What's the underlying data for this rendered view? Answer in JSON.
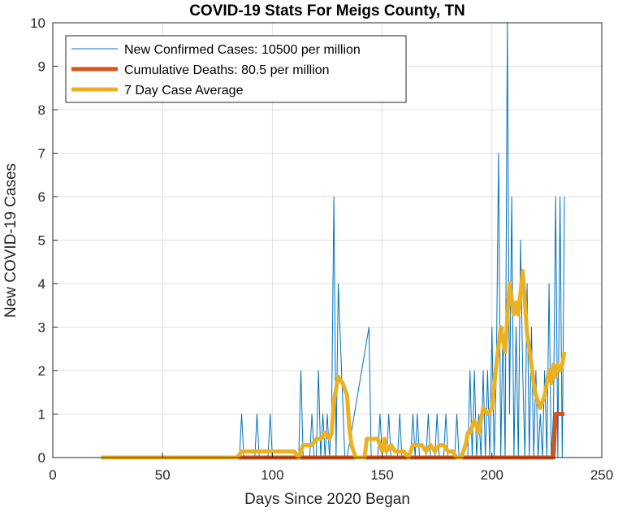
{
  "chart_data": {
    "type": "line",
    "title": "COVID-19 Stats For Meigs County, TN",
    "xlabel": "Days Since 2020 Began",
    "ylabel": "New COVID-19 Cases",
    "xlim": [
      0,
      250
    ],
    "ylim": [
      0,
      10
    ],
    "xticks": [
      0,
      50,
      100,
      150,
      200,
      250
    ],
    "yticks": [
      0,
      1,
      2,
      3,
      4,
      5,
      6,
      7,
      8,
      9,
      10
    ],
    "grid": true,
    "legend_position": "top-left",
    "series": [
      {
        "name": "New Confirmed Cases: 10500 per million",
        "color": "#0072BD",
        "line_width": 1,
        "x": [
          22,
          85,
          86,
          87,
          92,
          93,
          94,
          98,
          99,
          100,
          112,
          113,
          114,
          117,
          118,
          119,
          120,
          121,
          122,
          123,
          124,
          125,
          126,
          127,
          128,
          129,
          130,
          133,
          134,
          144,
          145,
          148,
          149,
          150,
          152,
          153,
          154,
          157,
          158,
          159,
          163,
          164,
          165,
          166,
          167,
          170,
          171,
          172,
          174,
          175,
          176,
          178,
          179,
          180,
          183,
          184,
          185,
          189,
          190,
          191,
          192,
          193,
          194,
          195,
          196,
          197,
          198,
          199,
          200,
          201,
          202,
          203,
          204,
          205,
          206,
          207,
          208,
          209,
          210,
          211,
          212,
          213,
          214,
          215,
          216,
          217,
          218,
          219,
          220,
          221,
          222,
          223,
          224,
          225,
          226,
          227,
          228,
          229,
          230,
          231,
          232,
          233
        ],
        "y": [
          0,
          0,
          1,
          0,
          0,
          1,
          0,
          0,
          1,
          0,
          0,
          2,
          0,
          0,
          1,
          0,
          0,
          2,
          0,
          1,
          0,
          1,
          0,
          1,
          6,
          0,
          4,
          0,
          0,
          3,
          0,
          0,
          1,
          0,
          0,
          1,
          0,
          0,
          1,
          0,
          0,
          1,
          0,
          1,
          0,
          0,
          1,
          0,
          0,
          1,
          0,
          0,
          1,
          0,
          0,
          1,
          0,
          0,
          2,
          0,
          2,
          0,
          1,
          0,
          2,
          0,
          2,
          0,
          3,
          0,
          2,
          7,
          0,
          3,
          0,
          10,
          1,
          6,
          0,
          3,
          0,
          5,
          2,
          0,
          4,
          0,
          3,
          0,
          2,
          0,
          1,
          0,
          2,
          0,
          4,
          0,
          1,
          6,
          0,
          6,
          0,
          6
        ]
      },
      {
        "name": "Cumulative Deaths: 80.5 per million",
        "color": "#D95319",
        "line_width": 5,
        "x": [
          22,
          228,
          229,
          233
        ],
        "y": [
          0,
          0,
          1,
          1
        ]
      },
      {
        "name": "7 Day Case Average",
        "color": "#EDB120",
        "line_width": 5,
        "x": [
          22,
          84,
          86,
          88,
          94,
          98,
          102,
          104,
          106,
          110,
          112,
          114,
          118,
          120,
          122,
          124,
          126,
          127,
          128,
          130,
          132,
          134,
          135,
          136,
          137,
          138,
          140,
          142,
          143,
          144,
          146,
          148,
          150,
          151,
          152,
          154,
          156,
          158,
          160,
          162,
          164,
          166,
          168,
          170,
          172,
          174,
          176,
          178,
          180,
          182,
          184,
          186,
          188,
          189,
          190,
          192,
          194,
          196,
          198,
          200,
          202,
          204,
          205,
          206,
          208,
          210,
          211,
          212,
          214,
          215,
          216,
          218,
          219,
          220,
          222,
          224,
          226,
          227,
          228,
          229,
          230,
          231,
          232,
          233
        ],
        "y": [
          0,
          0,
          0.14,
          0.14,
          0.14,
          0.14,
          0.14,
          0.14,
          0.14,
          0.14,
          0,
          0.29,
          0.29,
          0.43,
          0.43,
          0.57,
          0.43,
          0.57,
          1.29,
          1.86,
          1.71,
          1.43,
          0.71,
          0.29,
          0.14,
          0,
          0,
          0,
          0.43,
          0.43,
          0.43,
          0.43,
          0.14,
          0.43,
          0.14,
          0.29,
          0.14,
          0.14,
          0.14,
          0,
          0.29,
          0.29,
          0.29,
          0.14,
          0.29,
          0.14,
          0.29,
          0.29,
          0.14,
          0.14,
          0,
          0,
          0.29,
          0.57,
          0.57,
          0.86,
          0.57,
          1.14,
          1.0,
          1.14,
          2.14,
          3.0,
          2.71,
          2.43,
          4.0,
          3.29,
          3.57,
          3.29,
          4.29,
          3.57,
          2.86,
          2.14,
          1.71,
          1.43,
          1.14,
          1.43,
          2.0,
          1.71,
          2.14,
          1.86,
          2.14,
          2.0,
          2.14,
          2.43
        ]
      }
    ]
  }
}
